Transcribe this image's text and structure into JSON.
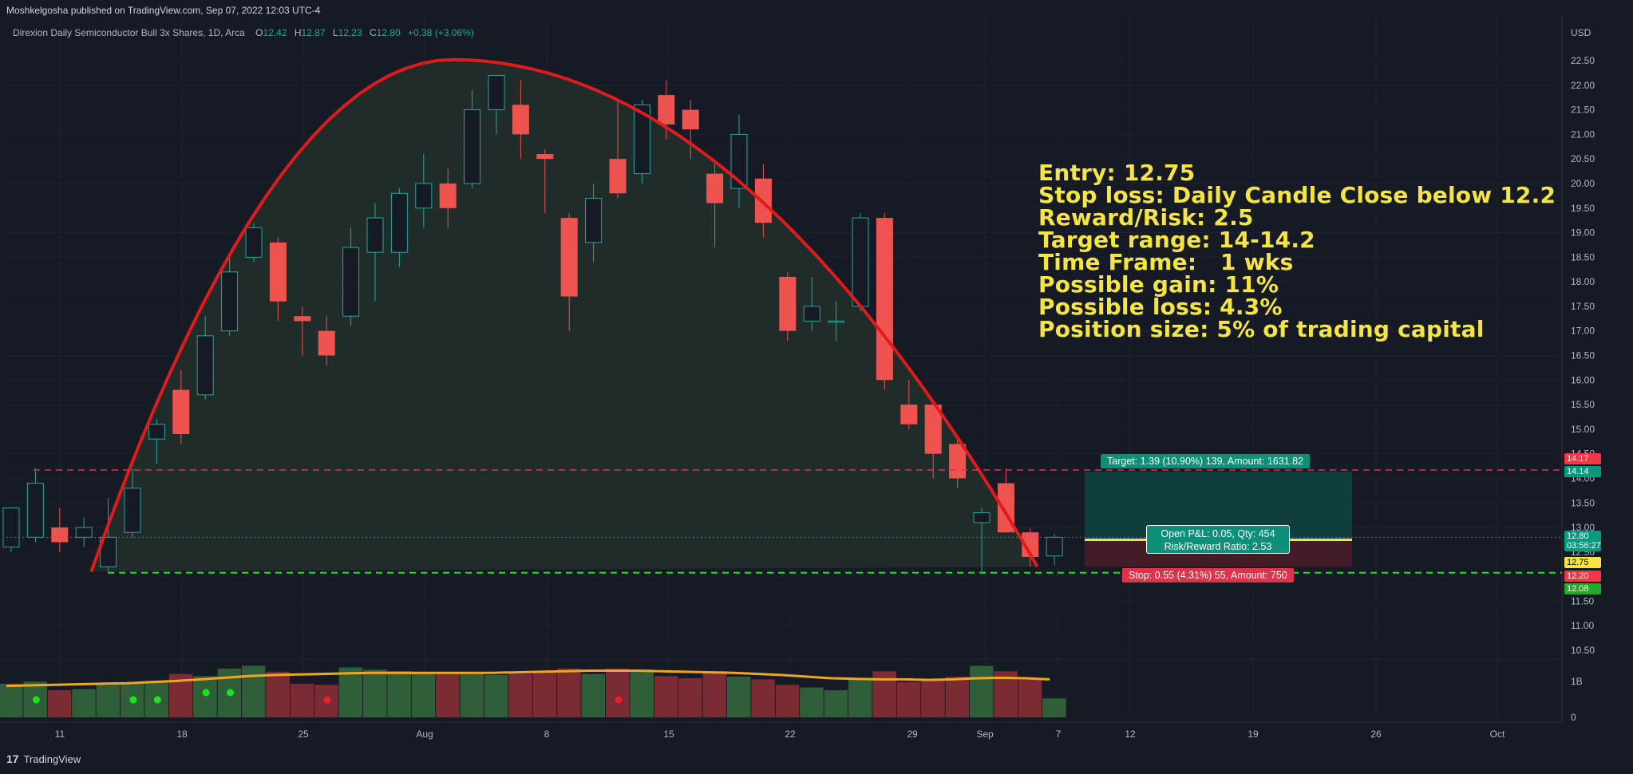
{
  "header": {
    "published": "Moshkelgosha published on TradingView.com, Sep 07, 2022 12:03 UTC-4",
    "symbol": "Direxion Daily Semiconductor Bull 3x Shares, 1D, Arca",
    "ohlc": [
      {
        "label": "O",
        "value": "12.42"
      },
      {
        "label": "H",
        "value": "12.87"
      },
      {
        "label": "L",
        "value": "12.23"
      },
      {
        "label": "C",
        "value": "12.80"
      }
    ],
    "change": "+0.38 (+3.06%)",
    "currency": "USD"
  },
  "notes": [
    "Entry: 12.75",
    "Stop loss: Daily Candle Close below 12.2",
    "Reward/Risk: 2.5",
    "Target range: 14-14.2",
    "Time Frame:   1 wks",
    "Possible gain: 11%",
    "Possible loss: 4.3%",
    "Position size: 5% of trading capital"
  ],
  "position": {
    "target_label": "Target: 1.39 (10.90%) 139, Amount: 1631.82",
    "stop_label": "Stop: 0.55 (4.31%) 55, Amount: 750",
    "pnl_line1": "Open P&L: 0.05, Qty: 454",
    "pnl_line2": "Risk/Reward Ratio: 2.53",
    "entry": 12.75,
    "target": 14.14,
    "stop": 12.2
  },
  "price_labels": [
    {
      "text": "14.17",
      "color": "#f23645"
    },
    {
      "text": "14.14",
      "color": "#089981"
    },
    {
      "text": "12.80",
      "text2": "03:56:27",
      "color": "#089981"
    },
    {
      "text": "12.75",
      "color": "#f5e542"
    },
    {
      "text": "12.20",
      "color": "#f23645"
    },
    {
      "text": "12.08",
      "color": "#22ab2b"
    }
  ],
  "footer": {
    "brand": "TradingView"
  },
  "colors": {
    "up": "#26a69a",
    "down": "#ef5350",
    "arc": "#e01b1b",
    "text": "#f5e542",
    "ma": "#f0a623"
  },
  "chart_data": {
    "type": "candlestick",
    "ylim": [
      10.3,
      22.8
    ],
    "yticks": [
      "10.50",
      "11.00",
      "11.50",
      "12.00",
      "12.50",
      "13.00",
      "13.50",
      "14.00",
      "14.50",
      "15.00",
      "15.50",
      "16.00",
      "16.50",
      "17.00",
      "17.50",
      "18.00",
      "18.50",
      "19.00",
      "19.50",
      "20.00",
      "20.50",
      "21.00",
      "21.50",
      "22.00",
      "22.50"
    ],
    "xticks": [
      "11",
      "18",
      "25",
      "Aug",
      "8",
      "15",
      "22",
      "29",
      "Sep",
      "7",
      "12",
      "19",
      "26",
      "Oct"
    ],
    "volume_ticks": [
      "1B",
      "0"
    ],
    "candles": [
      {
        "o": 12.6,
        "h": 13.3,
        "l": 12.5,
        "c": 13.4
      },
      {
        "o": 12.8,
        "h": 14.2,
        "l": 12.7,
        "c": 13.9
      },
      {
        "o": 13.0,
        "h": 13.4,
        "l": 12.5,
        "c": 12.7
      },
      {
        "o": 12.8,
        "h": 13.2,
        "l": 12.6,
        "c": 13.0
      },
      {
        "o": 12.2,
        "h": 13.6,
        "l": 12.1,
        "c": 12.8
      },
      {
        "o": 12.9,
        "h": 14.2,
        "l": 12.8,
        "c": 13.8
      },
      {
        "o": 14.8,
        "h": 15.2,
        "l": 14.3,
        "c": 15.1
      },
      {
        "o": 15.8,
        "h": 16.2,
        "l": 14.7,
        "c": 14.9
      },
      {
        "o": 15.7,
        "h": 17.3,
        "l": 15.6,
        "c": 16.9
      },
      {
        "o": 17.0,
        "h": 18.6,
        "l": 16.9,
        "c": 18.2
      },
      {
        "o": 18.5,
        "h": 19.2,
        "l": 18.4,
        "c": 19.1
      },
      {
        "o": 18.8,
        "h": 18.9,
        "l": 17.2,
        "c": 17.6
      },
      {
        "o": 17.3,
        "h": 17.5,
        "l": 16.5,
        "c": 17.2
      },
      {
        "o": 17.0,
        "h": 17.3,
        "l": 16.3,
        "c": 16.5
      },
      {
        "o": 17.3,
        "h": 19.1,
        "l": 17.1,
        "c": 18.7
      },
      {
        "o": 18.6,
        "h": 19.6,
        "l": 17.6,
        "c": 19.3
      },
      {
        "o": 18.6,
        "h": 19.9,
        "l": 18.3,
        "c": 19.8
      },
      {
        "o": 19.5,
        "h": 20.6,
        "l": 19.1,
        "c": 20.0
      },
      {
        "o": 20.0,
        "h": 20.3,
        "l": 19.1,
        "c": 19.5
      },
      {
        "o": 20.0,
        "h": 21.9,
        "l": 19.9,
        "c": 21.5
      },
      {
        "o": 21.5,
        "h": 22.2,
        "l": 21.0,
        "c": 22.2
      },
      {
        "o": 21.6,
        "h": 22.1,
        "l": 20.5,
        "c": 21.0
      },
      {
        "o": 20.6,
        "h": 20.7,
        "l": 19.4,
        "c": 20.5
      },
      {
        "o": 19.3,
        "h": 19.4,
        "l": 17.0,
        "c": 17.7
      },
      {
        "o": 18.8,
        "h": 20.0,
        "l": 18.4,
        "c": 19.7
      },
      {
        "o": 20.5,
        "h": 21.7,
        "l": 19.7,
        "c": 19.8
      },
      {
        "o": 20.2,
        "h": 21.7,
        "l": 20.0,
        "c": 21.6
      },
      {
        "o": 21.8,
        "h": 22.1,
        "l": 20.9,
        "c": 21.2
      },
      {
        "o": 21.5,
        "h": 21.7,
        "l": 20.5,
        "c": 21.1
      },
      {
        "o": 20.2,
        "h": 20.4,
        "l": 18.7,
        "c": 19.6
      },
      {
        "o": 19.9,
        "h": 21.4,
        "l": 19.5,
        "c": 21.0
      },
      {
        "o": 20.1,
        "h": 20.4,
        "l": 18.9,
        "c": 19.2
      },
      {
        "o": 18.1,
        "h": 18.2,
        "l": 16.8,
        "c": 17.0
      },
      {
        "o": 17.2,
        "h": 18.1,
        "l": 17.0,
        "c": 17.5
      },
      {
        "o": 17.2,
        "h": 17.6,
        "l": 16.8,
        "c": 17.2
      },
      {
        "o": 17.5,
        "h": 19.4,
        "l": 17.4,
        "c": 19.3
      },
      {
        "o": 19.3,
        "h": 19.4,
        "l": 15.8,
        "c": 16.0
      },
      {
        "o": 15.5,
        "h": 16.0,
        "l": 15.0,
        "c": 15.1
      },
      {
        "o": 15.5,
        "h": 15.6,
        "l": 14.0,
        "c": 14.5
      },
      {
        "o": 14.7,
        "h": 14.8,
        "l": 13.8,
        "c": 14.0
      },
      {
        "o": 13.1,
        "h": 13.4,
        "l": 12.1,
        "c": 13.3
      },
      {
        "o": 13.9,
        "h": 14.2,
        "l": 12.9,
        "c": 12.9
      },
      {
        "o": 12.9,
        "h": 13.0,
        "l": 12.2,
        "c": 12.4
      },
      {
        "o": 12.42,
        "h": 12.87,
        "l": 12.23,
        "c": 12.8
      }
    ],
    "volume": [
      0.62,
      0.66,
      0.5,
      0.52,
      0.6,
      0.63,
      0.66,
      0.8,
      0.76,
      0.9,
      0.95,
      0.84,
      0.62,
      0.6,
      0.92,
      0.88,
      0.85,
      0.83,
      0.82,
      0.8,
      0.78,
      0.8,
      0.85,
      0.9,
      0.8,
      0.9,
      0.88,
      0.76,
      0.72,
      0.85,
      0.75,
      0.7,
      0.6,
      0.55,
      0.5,
      0.72,
      0.85,
      0.65,
      0.7,
      0.75,
      0.95,
      0.85,
      0.7,
      0.35
    ],
    "volume_ma": [
      0.58,
      0.59,
      0.6,
      0.61,
      0.62,
      0.63,
      0.65,
      0.67,
      0.7,
      0.73,
      0.76,
      0.78,
      0.79,
      0.8,
      0.81,
      0.82,
      0.82,
      0.82,
      0.82,
      0.82,
      0.82,
      0.83,
      0.84,
      0.85,
      0.86,
      0.86,
      0.86,
      0.85,
      0.84,
      0.83,
      0.82,
      0.8,
      0.78,
      0.75,
      0.72,
      0.71,
      0.7,
      0.7,
      0.69,
      0.7,
      0.72,
      0.73,
      0.72,
      0.7
    ],
    "volume_dots": [
      {
        "bar": 1,
        "color": "#19e619"
      },
      {
        "bar": 5,
        "color": "#19e619"
      },
      {
        "bar": 6,
        "color": "#19e619"
      },
      {
        "bar": 8,
        "color": "#19e619"
      },
      {
        "bar": 9,
        "color": "#19e619"
      },
      {
        "bar": 13,
        "color": "#e62222"
      },
      {
        "bar": 25,
        "color": "#e62222"
      }
    ]
  }
}
